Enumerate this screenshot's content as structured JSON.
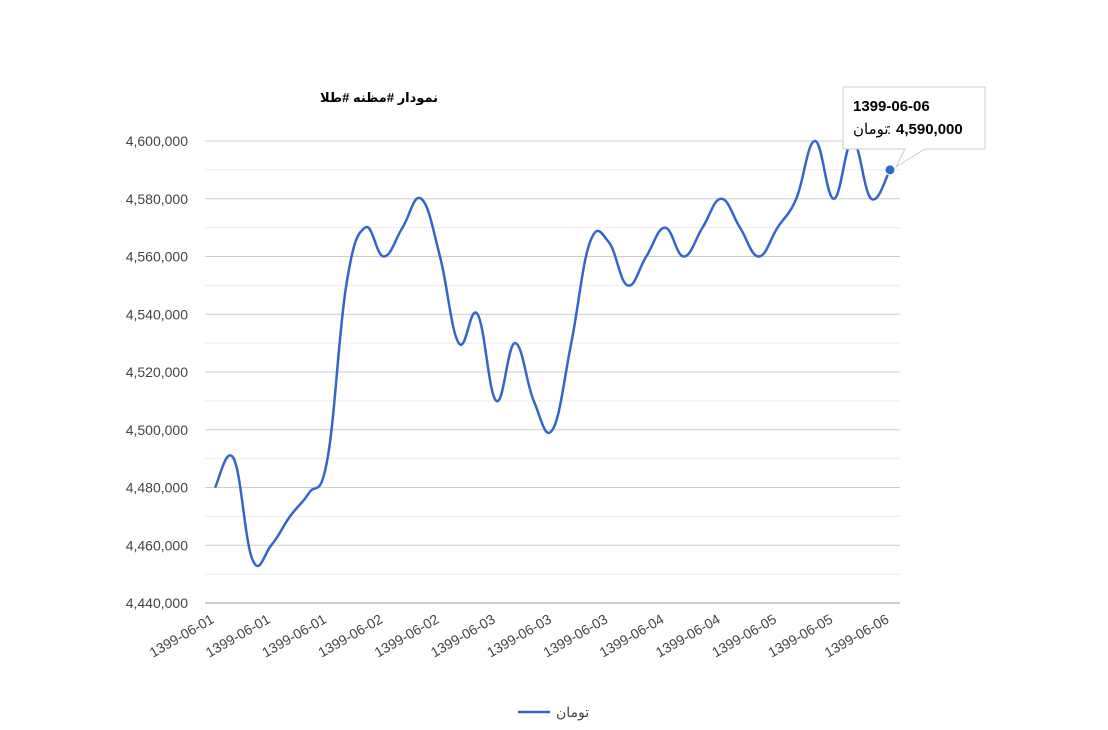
{
  "chart_data": {
    "type": "line",
    "title": "نمودار #مظنه #طلا",
    "categories": [
      "1399-06-01",
      null,
      null,
      "1399-06-01",
      null,
      null,
      "1399-06-01",
      null,
      null,
      "1399-06-02",
      null,
      null,
      "1399-06-02",
      null,
      null,
      "1399-06-03",
      null,
      null,
      "1399-06-03",
      null,
      null,
      "1399-06-03",
      null,
      null,
      "1399-06-04",
      null,
      null,
      "1399-06-04",
      null,
      null,
      "1399-06-05",
      null,
      null,
      "1399-06-05",
      null,
      null,
      "1399-06-06"
    ],
    "series": [
      {
        "name": "تومان",
        "color": "#3366cc",
        "values": [
          4480000,
          4490000,
          4455000,
          4460000,
          4470000,
          4478000,
          4490000,
          4550000,
          4570000,
          4560000,
          4570000,
          4580000,
          4560000,
          4530000,
          4540000,
          4510000,
          4530000,
          4510000,
          4500000,
          4530000,
          4565000,
          4565000,
          4550000,
          4560000,
          4570000,
          4560000,
          4570000,
          4580000,
          4570000,
          4560000,
          4570000,
          4580000,
          4600000,
          4580000,
          4600000,
          4580000,
          4590000
        ]
      }
    ],
    "ylim": [
      4440000,
      4600000
    ],
    "yticks": [
      {
        "value": 4440000,
        "label": "4,440,000"
      },
      {
        "value": 4460000,
        "label": "4,460,000"
      },
      {
        "value": 4480000,
        "label": "4,480,000"
      },
      {
        "value": 4500000,
        "label": "4,500,000"
      },
      {
        "value": 4520000,
        "label": "4,520,000"
      },
      {
        "value": 4540000,
        "label": "4,540,000"
      },
      {
        "value": 4560000,
        "label": "4,560,000"
      },
      {
        "value": 4580000,
        "label": "4,580,000"
      },
      {
        "value": 4600000,
        "label": "4,600,000"
      }
    ],
    "minor_yticks": [
      4450000,
      4470000,
      4490000,
      4510000,
      4530000,
      4550000,
      4570000,
      4590000
    ],
    "grid": true,
    "legend": "bottom",
    "tooltip": {
      "index": 36,
      "separator": ":",
      "value_label": "4,590,000"
    }
  }
}
